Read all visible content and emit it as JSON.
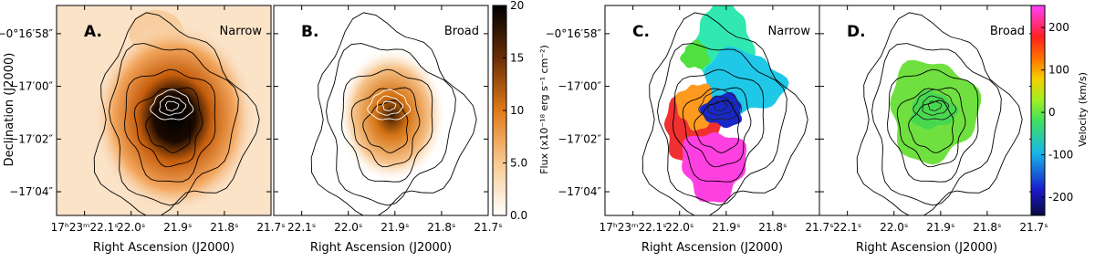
{
  "panels": [
    {
      "letter": "A.",
      "label": "Narrow"
    },
    {
      "letter": "B.",
      "label": "Broad"
    },
    {
      "letter": "C.",
      "label": "Narrow"
    },
    {
      "letter": "D.",
      "label": "Broad"
    }
  ],
  "x_axis": {
    "title": "Right Ascension (J2000)",
    "lim": [
      22.16,
      21.7
    ],
    "first_label": "17ʰ23ᵐ22.1ˢ",
    "ticks": [
      {
        "value": 22.1,
        "label": "22.1ˢ"
      },
      {
        "value": 22.0,
        "label": "22.0ˢ"
      },
      {
        "value": 21.9,
        "label": "21.9ˢ"
      },
      {
        "value": 21.8,
        "label": "21.8ˢ"
      },
      {
        "value": 21.7,
        "label": "21.7ˢ"
      }
    ]
  },
  "y_axis": {
    "title": "Declination (J2000)",
    "lim": [
      56.93,
      64.9
    ],
    "ticks": [
      {
        "value": 58,
        "label": "−0°16′58″"
      },
      {
        "value": 60,
        "label": "−17′00″"
      },
      {
        "value": 62,
        "label": "−17′02″"
      },
      {
        "value": 64,
        "label": "−17′04″"
      }
    ]
  },
  "colorbars": [
    {
      "title": "Flux (x10⁻¹⁸ erg s⁻¹ cm⁻²)",
      "lim": [
        0,
        20
      ],
      "ticks": [
        {
          "value": 0,
          "label": "0.0"
        },
        {
          "value": 5,
          "label": "5.0"
        },
        10,
        15,
        20
      ]
    },
    {
      "title": "Velocity (km/s)",
      "lim": [
        -243,
        252
      ],
      "ticks": [
        -200,
        -100,
        0,
        100,
        200
      ]
    }
  ]
}
